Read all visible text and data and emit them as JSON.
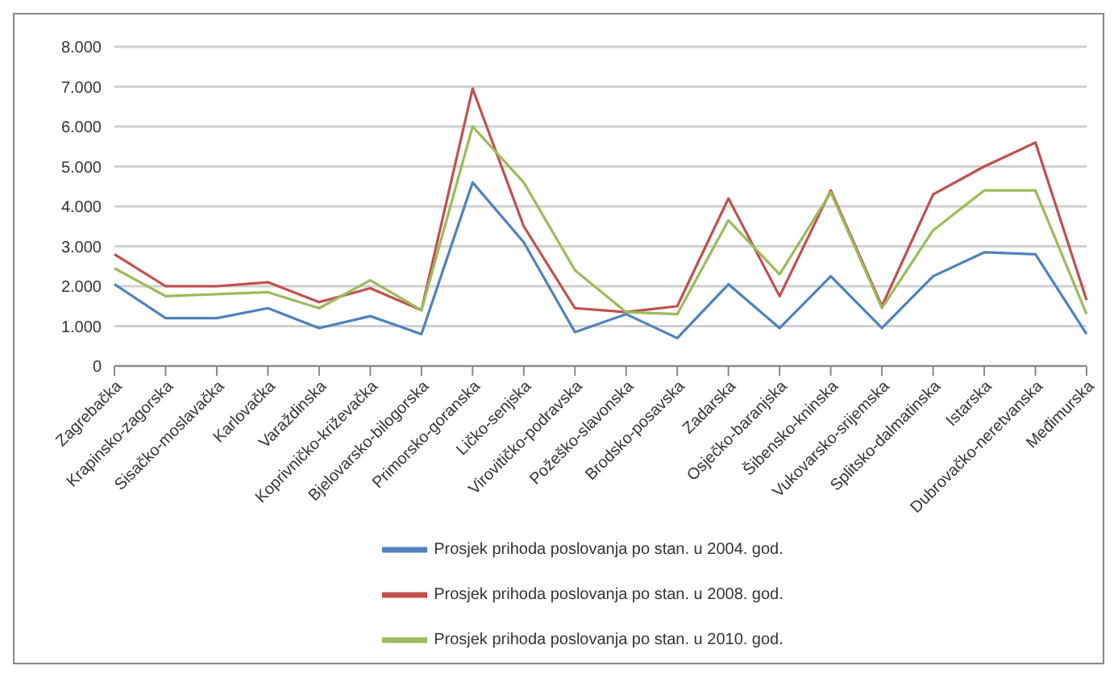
{
  "chart_data": {
    "type": "line",
    "categories": [
      "Zagrebačka",
      "Krapinsko-zagorska",
      "Sisačko-moslavačka",
      "Karlovačka",
      "Varaždinska",
      "Koprivničko-križevačka",
      "Bjelovarsko-bilogorska",
      "Primorsko-goranska",
      "Ličko-senjska",
      "Virovitičko-podravska",
      "Požeško-slavonska",
      "Brodsko-posavska",
      "Zadarska",
      "Osječko-baranjska",
      "Šibensko-kninska",
      "Vukovarsko-srijemska",
      "Splitsko-dalmatinska",
      "Istarska",
      "Dubrovačko-neretvanska",
      "Međimurska"
    ],
    "series": [
      {
        "name": "Prosjek prihoda poslovanja po stan. u 2004. god.",
        "color": "#4f81bd",
        "values": [
          2050,
          1200,
          1200,
          1450,
          950,
          1250,
          800,
          4600,
          3100,
          850,
          1300,
          700,
          2050,
          950,
          2250,
          950,
          2250,
          2850,
          2800,
          800
        ]
      },
      {
        "name": "Prosjek prihoda poslovanja po stan. u 2008. god.",
        "color": "#c0504d",
        "values": [
          2800,
          2000,
          2000,
          2100,
          1600,
          1950,
          1400,
          6950,
          3500,
          1450,
          1350,
          1500,
          4200,
          1750,
          4400,
          1500,
          4300,
          5000,
          5600,
          1650
        ]
      },
      {
        "name": "Prosjek prihoda poslovanja po stan. u 2010. god.",
        "color": "#9bbb59",
        "values": [
          2450,
          1750,
          1800,
          1850,
          1450,
          2150,
          1400,
          6000,
          4600,
          2400,
          1350,
          1300,
          3650,
          2300,
          4350,
          1450,
          3400,
          4400,
          4400,
          1300
        ]
      }
    ],
    "ylim": [
      0,
      8000
    ],
    "yticks": [
      {
        "value": 0,
        "label": "0"
      },
      {
        "value": 1000,
        "label": "1.000"
      },
      {
        "value": 2000,
        "label": "2.000"
      },
      {
        "value": 3000,
        "label": "3.000"
      },
      {
        "value": 4000,
        "label": "4.000"
      },
      {
        "value": 5000,
        "label": "5.000"
      },
      {
        "value": 6000,
        "label": "6.000"
      },
      {
        "value": 7000,
        "label": "7.000"
      },
      {
        "value": 8000,
        "label": "8.000"
      }
    ],
    "grid": "y",
    "legend": "bottom",
    "marker": "none",
    "line_style": "solid"
  }
}
